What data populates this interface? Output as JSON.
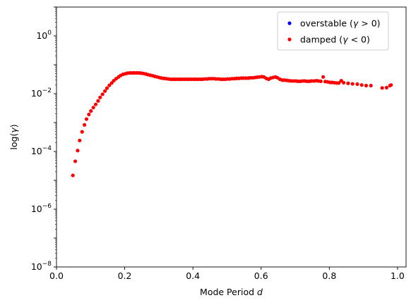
{
  "chart_data": {
    "type": "scatter",
    "xlabel": "Mode Period d",
    "ylabel": "log(γ)",
    "xlim": [
      0.0,
      1.025
    ],
    "ylog": true,
    "ylim_exp": [
      -8,
      1
    ],
    "x_ticks": [
      0.0,
      0.2,
      0.4,
      0.6,
      0.8,
      1.0
    ],
    "x_tick_labels": [
      "0.0",
      "0.2",
      "0.4",
      "0.6",
      "0.8",
      "1.0"
    ],
    "y_tick_exps": [
      -8,
      -6,
      -4,
      -2,
      0
    ],
    "legend_position": "top-right",
    "legend_box": true,
    "series": [
      {
        "name": "overstable (γ > 0)",
        "color": "#0000ff",
        "points": []
      },
      {
        "name": "damped (γ < 0)",
        "color": "#ff0000",
        "points": [
          [
            0.048,
            -4.83
          ],
          [
            0.055,
            -4.34
          ],
          [
            0.062,
            -3.97
          ],
          [
            0.068,
            -3.62
          ],
          [
            0.075,
            -3.32
          ],
          [
            0.082,
            -3.08
          ],
          [
            0.088,
            -2.88
          ],
          [
            0.095,
            -2.72
          ],
          [
            0.101,
            -2.6
          ],
          [
            0.108,
            -2.48
          ],
          [
            0.115,
            -2.37
          ],
          [
            0.122,
            -2.25
          ],
          [
            0.128,
            -2.13
          ],
          [
            0.135,
            -2.02
          ],
          [
            0.142,
            -1.91
          ],
          [
            0.148,
            -1.81
          ],
          [
            0.155,
            -1.71
          ],
          [
            0.162,
            -1.63
          ],
          [
            0.168,
            -1.55
          ],
          [
            0.175,
            -1.48
          ],
          [
            0.182,
            -1.42
          ],
          [
            0.188,
            -1.37
          ],
          [
            0.195,
            -1.33
          ],
          [
            0.202,
            -1.31
          ],
          [
            0.208,
            -1.29
          ],
          [
            0.215,
            -1.28
          ],
          [
            0.222,
            -1.28
          ],
          [
            0.228,
            -1.28
          ],
          [
            0.235,
            -1.28
          ],
          [
            0.242,
            -1.28
          ],
          [
            0.248,
            -1.29
          ],
          [
            0.255,
            -1.3
          ],
          [
            0.262,
            -1.32
          ],
          [
            0.268,
            -1.34
          ],
          [
            0.275,
            -1.36
          ],
          [
            0.282,
            -1.38
          ],
          [
            0.288,
            -1.4
          ],
          [
            0.295,
            -1.42
          ],
          [
            0.302,
            -1.44
          ],
          [
            0.308,
            -1.46
          ],
          [
            0.315,
            -1.47
          ],
          [
            0.322,
            -1.48
          ],
          [
            0.328,
            -1.49
          ],
          [
            0.335,
            -1.5
          ],
          [
            0.342,
            -1.5
          ],
          [
            0.348,
            -1.5
          ],
          [
            0.355,
            -1.5
          ],
          [
            0.362,
            -1.5
          ],
          [
            0.368,
            -1.5
          ],
          [
            0.375,
            -1.5
          ],
          [
            0.382,
            -1.5
          ],
          [
            0.388,
            -1.5
          ],
          [
            0.395,
            -1.5
          ],
          [
            0.402,
            -1.5
          ],
          [
            0.408,
            -1.5
          ],
          [
            0.415,
            -1.5
          ],
          [
            0.422,
            -1.5
          ],
          [
            0.428,
            -1.5
          ],
          [
            0.435,
            -1.49
          ],
          [
            0.442,
            -1.49
          ],
          [
            0.448,
            -1.48
          ],
          [
            0.455,
            -1.48
          ],
          [
            0.462,
            -1.48
          ],
          [
            0.468,
            -1.49
          ],
          [
            0.475,
            -1.49
          ],
          [
            0.482,
            -1.5
          ],
          [
            0.488,
            -1.5
          ],
          [
            0.495,
            -1.5
          ],
          [
            0.502,
            -1.49
          ],
          [
            0.508,
            -1.49
          ],
          [
            0.515,
            -1.48
          ],
          [
            0.522,
            -1.48
          ],
          [
            0.528,
            -1.47
          ],
          [
            0.535,
            -1.47
          ],
          [
            0.542,
            -1.46
          ],
          [
            0.548,
            -1.46
          ],
          [
            0.555,
            -1.46
          ],
          [
            0.562,
            -1.46
          ],
          [
            0.568,
            -1.45
          ],
          [
            0.575,
            -1.45
          ],
          [
            0.582,
            -1.44
          ],
          [
            0.588,
            -1.43
          ],
          [
            0.595,
            -1.42
          ],
          [
            0.602,
            -1.41
          ],
          [
            0.608,
            -1.42
          ],
          [
            0.615,
            -1.47
          ],
          [
            0.622,
            -1.5
          ],
          [
            0.628,
            -1.46
          ],
          [
            0.635,
            -1.44
          ],
          [
            0.642,
            -1.42
          ],
          [
            0.648,
            -1.45
          ],
          [
            0.655,
            -1.5
          ],
          [
            0.662,
            -1.53
          ],
          [
            0.668,
            -1.53
          ],
          [
            0.675,
            -1.54
          ],
          [
            0.682,
            -1.55
          ],
          [
            0.688,
            -1.56
          ],
          [
            0.695,
            -1.56
          ],
          [
            0.702,
            -1.56
          ],
          [
            0.708,
            -1.57
          ],
          [
            0.715,
            -1.57
          ],
          [
            0.722,
            -1.56
          ],
          [
            0.728,
            -1.56
          ],
          [
            0.735,
            -1.57
          ],
          [
            0.742,
            -1.57
          ],
          [
            0.748,
            -1.56
          ],
          [
            0.755,
            -1.56
          ],
          [
            0.762,
            -1.55
          ],
          [
            0.768,
            -1.56
          ],
          [
            0.775,
            -1.57
          ],
          [
            0.782,
            -1.42
          ],
          [
            0.788,
            -1.58
          ],
          [
            0.795,
            -1.59
          ],
          [
            0.802,
            -1.61
          ],
          [
            0.808,
            -1.61
          ],
          [
            0.815,
            -1.62
          ],
          [
            0.822,
            -1.63
          ],
          [
            0.828,
            -1.63
          ],
          [
            0.835,
            -1.55
          ],
          [
            0.842,
            -1.62
          ],
          [
            0.855,
            -1.64
          ],
          [
            0.868,
            -1.66
          ],
          [
            0.882,
            -1.67
          ],
          [
            0.895,
            -1.7
          ],
          [
            0.908,
            -1.72
          ],
          [
            0.922,
            -1.72
          ],
          [
            0.955,
            -1.8
          ],
          [
            0.968,
            -1.79
          ],
          [
            0.978,
            -1.72
          ],
          [
            0.981,
            -1.7
          ]
        ]
      }
    ]
  }
}
